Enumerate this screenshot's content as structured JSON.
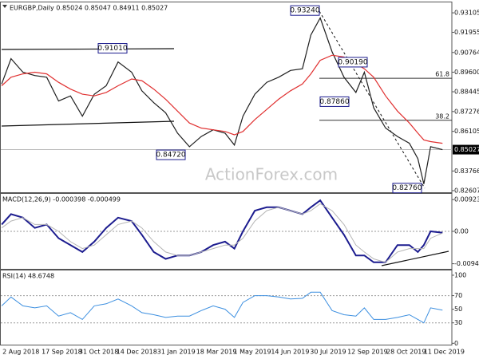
{
  "chart_data": [
    {
      "type": "line",
      "title": "EURGBP,Daily  0.85024 0.85047 0.84911 0.85027",
      "watermark": "ActionForex.com",
      "x": [
        "2 Aug 2018",
        "13 Aug 2018",
        "27 Aug 2018",
        "10 Sep 2018",
        "24 Sep 2018",
        "8 Oct 2018",
        "22 Oct 2018",
        "5 Nov 2018",
        "19 Nov 2018",
        "3 Dec 2018",
        "17 Dec 2018",
        "2 Jan 2019",
        "14 Jan 2019",
        "28 Jan 2019",
        "11 Feb 2019",
        "25 Feb 2019",
        "11 Mar 2019",
        "25 Mar 2019",
        "8 Apr 2019",
        "22 Apr 2019",
        "3 May 2019",
        "13 May 2019",
        "27 May 2019",
        "10 Jun 2019",
        "24 Jun 2019",
        "8 Jul 2019",
        "22 Jul 2019",
        "1 Aug 2019",
        "12 Aug 2019",
        "26 Aug 2019",
        "9 Sep 2019",
        "23 Sep 2019",
        "3 Oct 2019",
        "14 Oct 2019",
        "28 Oct 2019",
        "11 Nov 2019",
        "25 Nov 2019",
        "5 Dec 2019",
        "12 Dec 2019",
        "20 Dec 2019",
        "3 Jan 2020"
      ],
      "series": [
        {
          "color": "#1f1f1f",
          "values": [
            0.889,
            0.904,
            0.896,
            0.894,
            0.893,
            0.879,
            0.882,
            0.87,
            0.883,
            0.888,
            0.902,
            0.896,
            0.885,
            0.878,
            0.872,
            0.86,
            0.852,
            0.858,
            0.862,
            0.86,
            0.853,
            0.87,
            0.883,
            0.89,
            0.893,
            0.897,
            0.898,
            0.918,
            0.928,
            0.908,
            0.893,
            0.884,
            0.896,
            0.875,
            0.863,
            0.858,
            0.854,
            0.845,
            0.83,
            0.852,
            0.85027
          ]
        },
        {
          "color": "#e03030",
          "values": [
            0.888,
            0.893,
            0.895,
            0.896,
            0.895,
            0.89,
            0.886,
            0.883,
            0.882,
            0.884,
            0.888,
            0.892,
            0.891,
            0.886,
            0.88,
            0.873,
            0.866,
            0.863,
            0.862,
            0.861,
            0.859,
            0.861,
            0.868,
            0.874,
            0.88,
            0.885,
            0.889,
            0.895,
            0.903,
            0.906,
            0.905,
            0.901,
            0.898,
            0.893,
            0.882,
            0.873,
            0.866,
            0.86,
            0.856,
            0.855,
            0.854
          ]
        }
      ],
      "xlim": [
        "31 Jul 2018",
        "14 Jan 2020"
      ],
      "xticks": [
        "2 Aug 2018",
        "17 Sep 2018",
        "31 Oct 2018",
        "14 Dec 2018",
        "31 Jan 2019",
        "18 Mar 2019",
        "1 May 2019",
        "14 Jun 2019",
        "30 Jul 2019",
        "12 Sep 2019",
        "28 Oct 2019",
        "11 Dec 2019"
      ],
      "ylim": [
        0.8251,
        0.9372
      ],
      "yticks": [
        {
          "value": 0.93105,
          "label": "0.93105"
        },
        {
          "value": 0.91955,
          "label": "0.91955"
        },
        {
          "value": 0.90764,
          "label": "0.90764"
        },
        {
          "value": 0.896,
          "label": "0.89600"
        },
        {
          "value": 0.88445,
          "label": "0.88445"
        },
        {
          "value": 0.87276,
          "label": "0.87276"
        },
        {
          "value": 0.86105,
          "label": "0.86105"
        },
        {
          "value": 0.83766,
          "label": "0.83766"
        },
        {
          "value": 0.82607,
          "label": "0.82607"
        }
      ],
      "last_price": 0.85027,
      "price_labels": [
        {
          "value": 0.9324,
          "label": "0.93240"
        },
        {
          "value": 0.9101,
          "label": "0.91010"
        },
        {
          "value": 0.9019,
          "label": "0.90190"
        },
        {
          "value": 0.8786,
          "label": "0.87860"
        },
        {
          "value": 0.8472,
          "label": "0.84720"
        },
        {
          "value": 0.8276,
          "label": "0.82760"
        }
      ],
      "fib_levels": [
        {
          "ratio": 61.8,
          "price": 0.8924
        },
        {
          "ratio": 38.2,
          "price": 0.8676
        }
      ]
    },
    {
      "type": "line",
      "title": "MACD(12,26,9) -0.000398 -0.000499",
      "x": [
        "2 Aug 2018",
        "13 Aug 2018",
        "27 Aug 2018",
        "10 Sep 2018",
        "24 Sep 2018",
        "8 Oct 2018",
        "22 Oct 2018",
        "5 Nov 2018",
        "19 Nov 2018",
        "3 Dec 2018",
        "17 Dec 2018",
        "2 Jan 2019",
        "14 Jan 2019",
        "28 Jan 2019",
        "11 Feb 2019",
        "25 Feb 2019",
        "11 Mar 2019",
        "25 Mar 2019",
        "8 Apr 2019",
        "22 Apr 2019",
        "3 May 2019",
        "13 May 2019",
        "27 May 2019",
        "10 Jun 2019",
        "24 Jun 2019",
        "8 Jul 2019",
        "22 Jul 2019",
        "1 Aug 2019",
        "12 Aug 2019",
        "26 Aug 2019",
        "9 Sep 2019",
        "23 Sep 2019",
        "3 Oct 2019",
        "14 Oct 2019",
        "28 Oct 2019",
        "11 Nov 2019",
        "25 Nov 2019",
        "5 Dec 2019",
        "12 Dec 2019",
        "20 Dec 2019",
        "3 Jan 2020"
      ],
      "series": [
        {
          "color": "#1c1c8f",
          "width": 2,
          "values": [
            0.002,
            0.005,
            0.004,
            0.001,
            0.002,
            -0.002,
            -0.004,
            -0.006,
            -0.003,
            0.001,
            0.004,
            0.003,
            -0.001,
            -0.006,
            -0.008,
            -0.007,
            -0.007,
            -0.006,
            -0.004,
            -0.003,
            -0.005,
            0.0,
            0.006,
            0.007,
            0.007,
            0.006,
            0.005,
            0.007,
            0.009,
            0.004,
            -0.001,
            -0.007,
            -0.007,
            -0.009,
            -0.009,
            -0.004,
            -0.004,
            -0.006,
            -0.004,
            0.0,
            -0.000398
          ]
        },
        {
          "color": "#b5b5b5",
          "width": 1,
          "values": [
            0.001,
            0.003,
            0.004,
            0.002,
            0.002,
            0.0,
            -0.003,
            -0.005,
            -0.004,
            -0.001,
            0.002,
            0.003,
            0.001,
            -0.003,
            -0.006,
            -0.007,
            -0.007,
            -0.006,
            -0.005,
            -0.004,
            -0.004,
            -0.002,
            0.003,
            0.006,
            0.007,
            0.006,
            0.005,
            0.006,
            0.008,
            0.006,
            0.002,
            -0.004,
            -0.006,
            -0.008,
            -0.009,
            -0.006,
            -0.005,
            -0.005,
            -0.005,
            -0.002,
            -0.000499
          ]
        }
      ],
      "xlim": [
        "31 Jul 2018",
        "14 Jan 2020"
      ],
      "ylim": [
        -0.0109,
        0.0109
      ],
      "yticks": [
        0.009237,
        {
          "value": 0,
          "label": "0.00"
        },
        -0.009413
      ],
      "level_lines": [
        0
      ]
    },
    {
      "type": "line",
      "title": "RSI(14) 48.6748",
      "x": [
        "2 Aug 2018",
        "13 Aug 2018",
        "27 Aug 2018",
        "10 Sep 2018",
        "24 Sep 2018",
        "8 Oct 2018",
        "22 Oct 2018",
        "5 Nov 2018",
        "19 Nov 2018",
        "3 Dec 2018",
        "17 Dec 2018",
        "2 Jan 2019",
        "14 Jan 2019",
        "28 Jan 2019",
        "11 Feb 2019",
        "25 Feb 2019",
        "11 Mar 2019",
        "25 Mar 2019",
        "8 Apr 2019",
        "22 Apr 2019",
        "3 May 2019",
        "13 May 2019",
        "27 May 2019",
        "10 Jun 2019",
        "24 Jun 2019",
        "8 Jul 2019",
        "22 Jul 2019",
        "1 Aug 2019",
        "12 Aug 2019",
        "26 Aug 2019",
        "9 Sep 2019",
        "23 Sep 2019",
        "3 Oct 2019",
        "14 Oct 2019",
        "28 Oct 2019",
        "11 Nov 2019",
        "25 Nov 2019",
        "5 Dec 2019",
        "12 Dec 2019",
        "20 Dec 2019",
        "3 Jan 2020"
      ],
      "series": [
        {
          "color": "#3c8fe0",
          "width": 1,
          "values": [
            55,
            68,
            55,
            52,
            55,
            40,
            45,
            35,
            55,
            58,
            65,
            55,
            45,
            42,
            38,
            40,
            40,
            48,
            55,
            50,
            38,
            60,
            70,
            70,
            68,
            65,
            66,
            75,
            75,
            48,
            42,
            40,
            52,
            35,
            35,
            38,
            42,
            35,
            30,
            52,
            48.6748
          ]
        }
      ],
      "xlim": [
        "31 Jul 2018",
        "14 Jan 2020"
      ],
      "ylim": [
        -2,
        107
      ],
      "yticks": [
        100,
        70,
        50,
        30,
        0
      ],
      "level_lines": [
        70,
        30
      ]
    }
  ]
}
